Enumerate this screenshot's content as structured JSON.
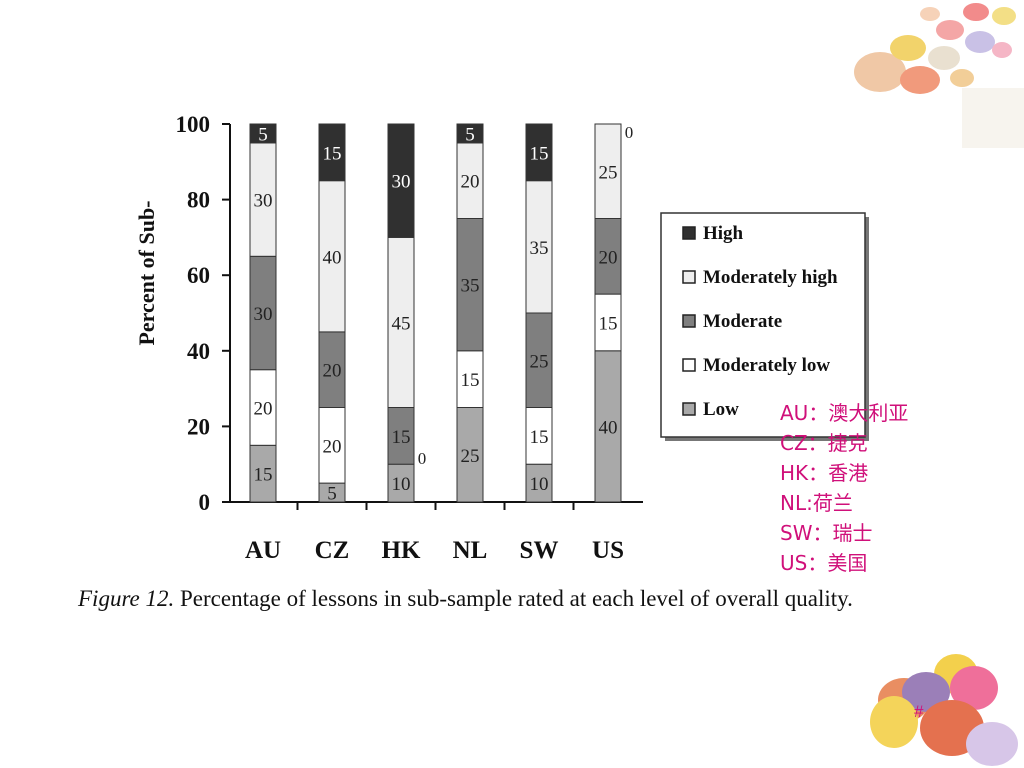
{
  "chart_data": {
    "type": "bar",
    "stacked": true,
    "categories": [
      "AU",
      "CZ",
      "HK",
      "NL",
      "SW",
      "US"
    ],
    "series": [
      {
        "name": "Low",
        "color": "#a9a9a9",
        "values": [
          15,
          5,
          10,
          25,
          10,
          40
        ]
      },
      {
        "name": "Moderately low",
        "color": "#ffffff",
        "values": [
          20,
          20,
          0,
          15,
          15,
          15
        ]
      },
      {
        "name": "Moderate",
        "color": "#7f7f7f",
        "values": [
          30,
          20,
          15,
          35,
          25,
          20
        ]
      },
      {
        "name": "Moderately high",
        "color": "#eeeeee",
        "values": [
          30,
          40,
          45,
          20,
          35,
          25
        ]
      },
      {
        "name": "High",
        "color": "#303030",
        "values": [
          5,
          15,
          30,
          5,
          15,
          0
        ]
      }
    ],
    "ylabel": "Percent of Sub-",
    "xlabel": "",
    "ylim": [
      0,
      100
    ],
    "yticks": [
      0,
      20,
      40,
      60,
      80,
      100
    ],
    "legend_position": "right",
    "legend_order": [
      "High",
      "Moderately high",
      "Moderate",
      "Moderately low",
      "Low"
    ]
  },
  "caption": {
    "figure_label": "Figure 12.",
    "text": " Percentage of lessons in sub-sample rated at each level of overall quality."
  },
  "annotation_lines": [
    "AU：澳大利亚",
    "CZ：捷克",
    "HK：香港",
    "NL:荷兰",
    "SW：瑞士",
    "US：美国"
  ],
  "slide_number": "#",
  "colors": {
    "accent": "#d0107a"
  }
}
